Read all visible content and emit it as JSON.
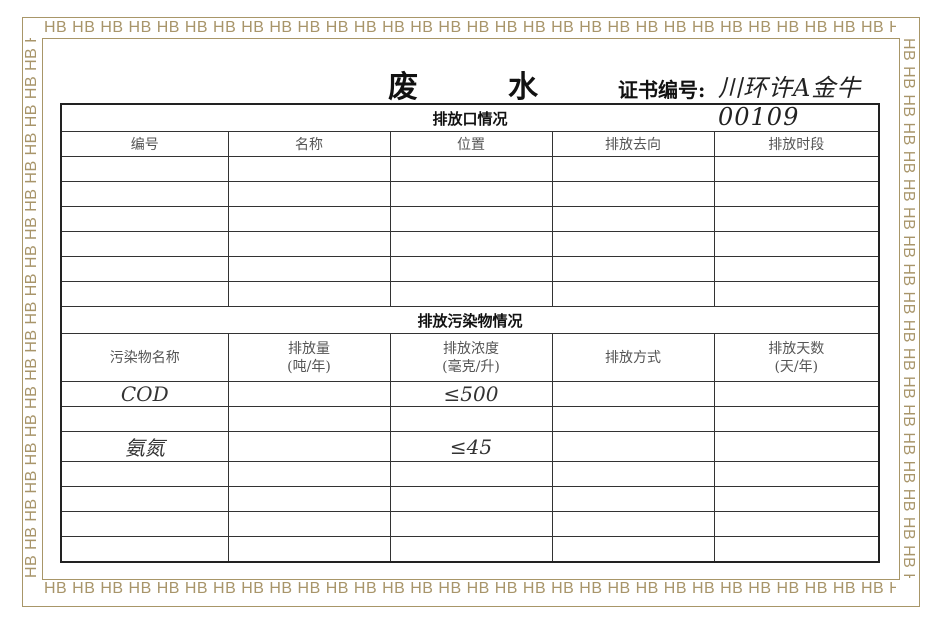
{
  "border_pattern": "HB",
  "border_color": "#a8956a",
  "title": "废　　　水",
  "certificate": {
    "label": "证书编号:",
    "value": "川环许A金牛00109"
  },
  "outlet_section": {
    "title": "排放口情况",
    "headers": [
      "编号",
      "名称",
      "位置",
      "排放去向",
      "排放时段"
    ],
    "rows": [
      [
        "",
        "",
        "",
        "",
        ""
      ],
      [
        "",
        "",
        "",
        "",
        ""
      ],
      [
        "",
        "",
        "",
        "",
        ""
      ],
      [
        "",
        "",
        "",
        "",
        ""
      ],
      [
        "",
        "",
        "",
        "",
        ""
      ],
      [
        "",
        "",
        "",
        "",
        ""
      ]
    ]
  },
  "pollutant_section": {
    "title": "排放污染物情况",
    "headers": [
      "污染物名称",
      "排放量\n(吨/年)",
      "排放浓度\n(毫克/升)",
      "排放方式",
      "排放天数\n(天/年)"
    ],
    "rows": [
      [
        "COD",
        "",
        "≤500",
        "",
        ""
      ],
      [
        "",
        "",
        "",
        "",
        ""
      ],
      [
        "氨氮",
        "",
        "≤45",
        "",
        ""
      ],
      [
        "",
        "",
        "",
        "",
        ""
      ],
      [
        "",
        "",
        "",
        "",
        ""
      ],
      [
        "",
        "",
        "",
        "",
        ""
      ],
      [
        "",
        "",
        "",
        "",
        ""
      ]
    ]
  }
}
